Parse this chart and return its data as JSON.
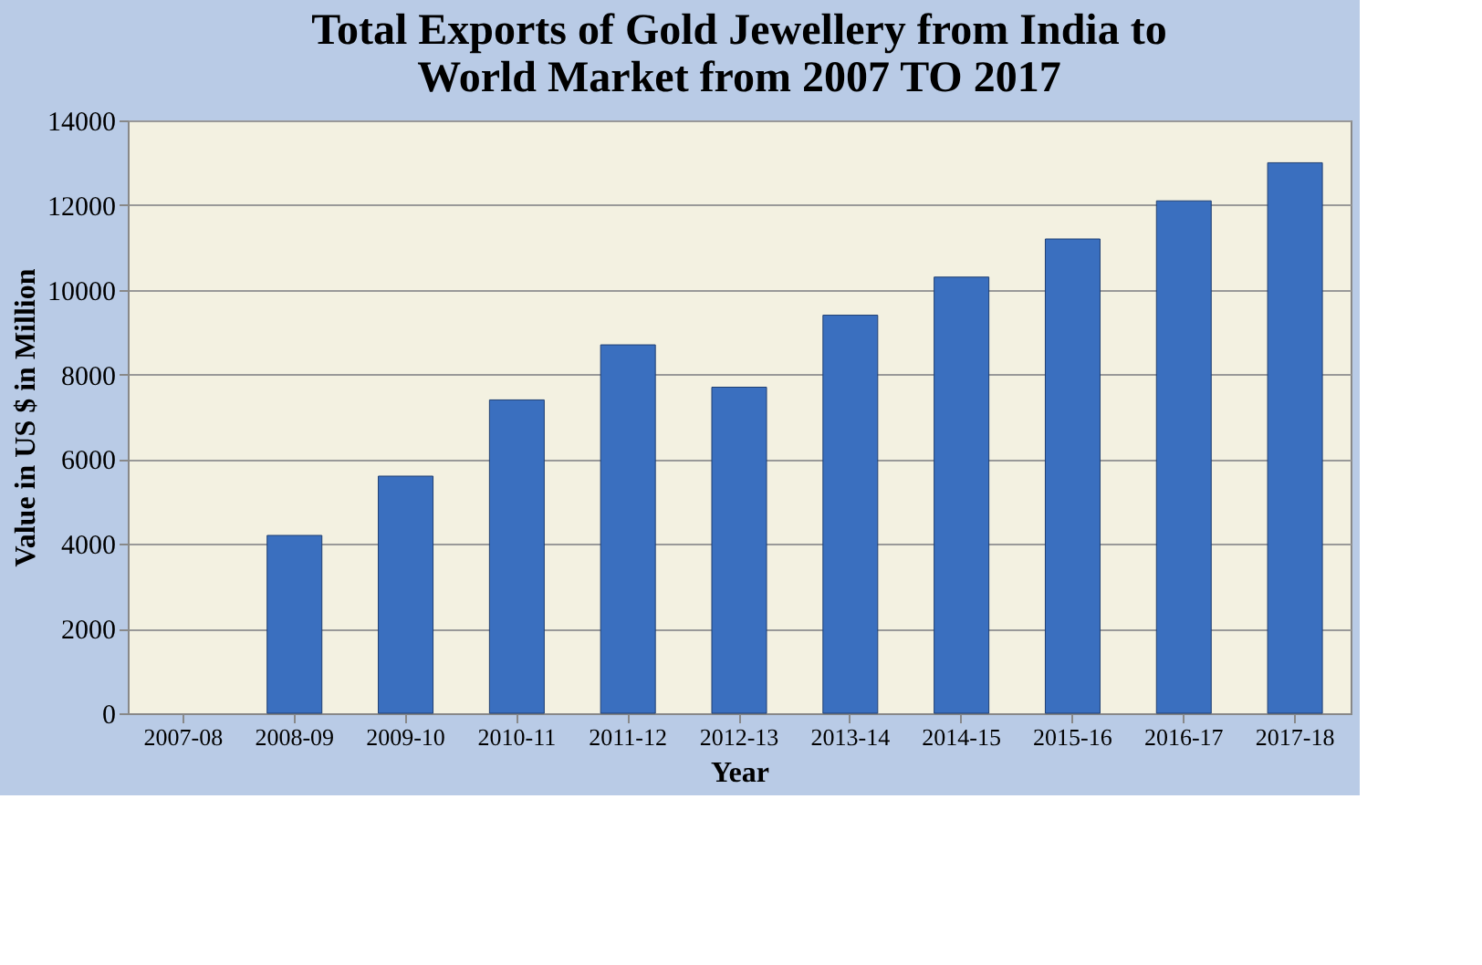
{
  "chart_data": {
    "type": "bar",
    "title": "Total Exports of Gold Jewellery from India to\nWorld Market from 2007 TO 2017",
    "xlabel": "Year",
    "ylabel": "Value in US $ in Million",
    "categories": [
      "2007-08",
      "2008-09",
      "2009-10",
      "2010-11",
      "2011-12",
      "2012-13",
      "2013-14",
      "2014-15",
      "2015-16",
      "2016-17",
      "2017-18"
    ],
    "values": [
      null,
      4200,
      5600,
      7400,
      8700,
      7700,
      9400,
      10300,
      11200,
      12100,
      13000
    ],
    "color": "#3a6fbf",
    "ylim": [
      0,
      14000
    ],
    "yticks": [
      0,
      2000,
      4000,
      6000,
      8000,
      10000,
      12000,
      14000
    ],
    "grid": "y"
  }
}
